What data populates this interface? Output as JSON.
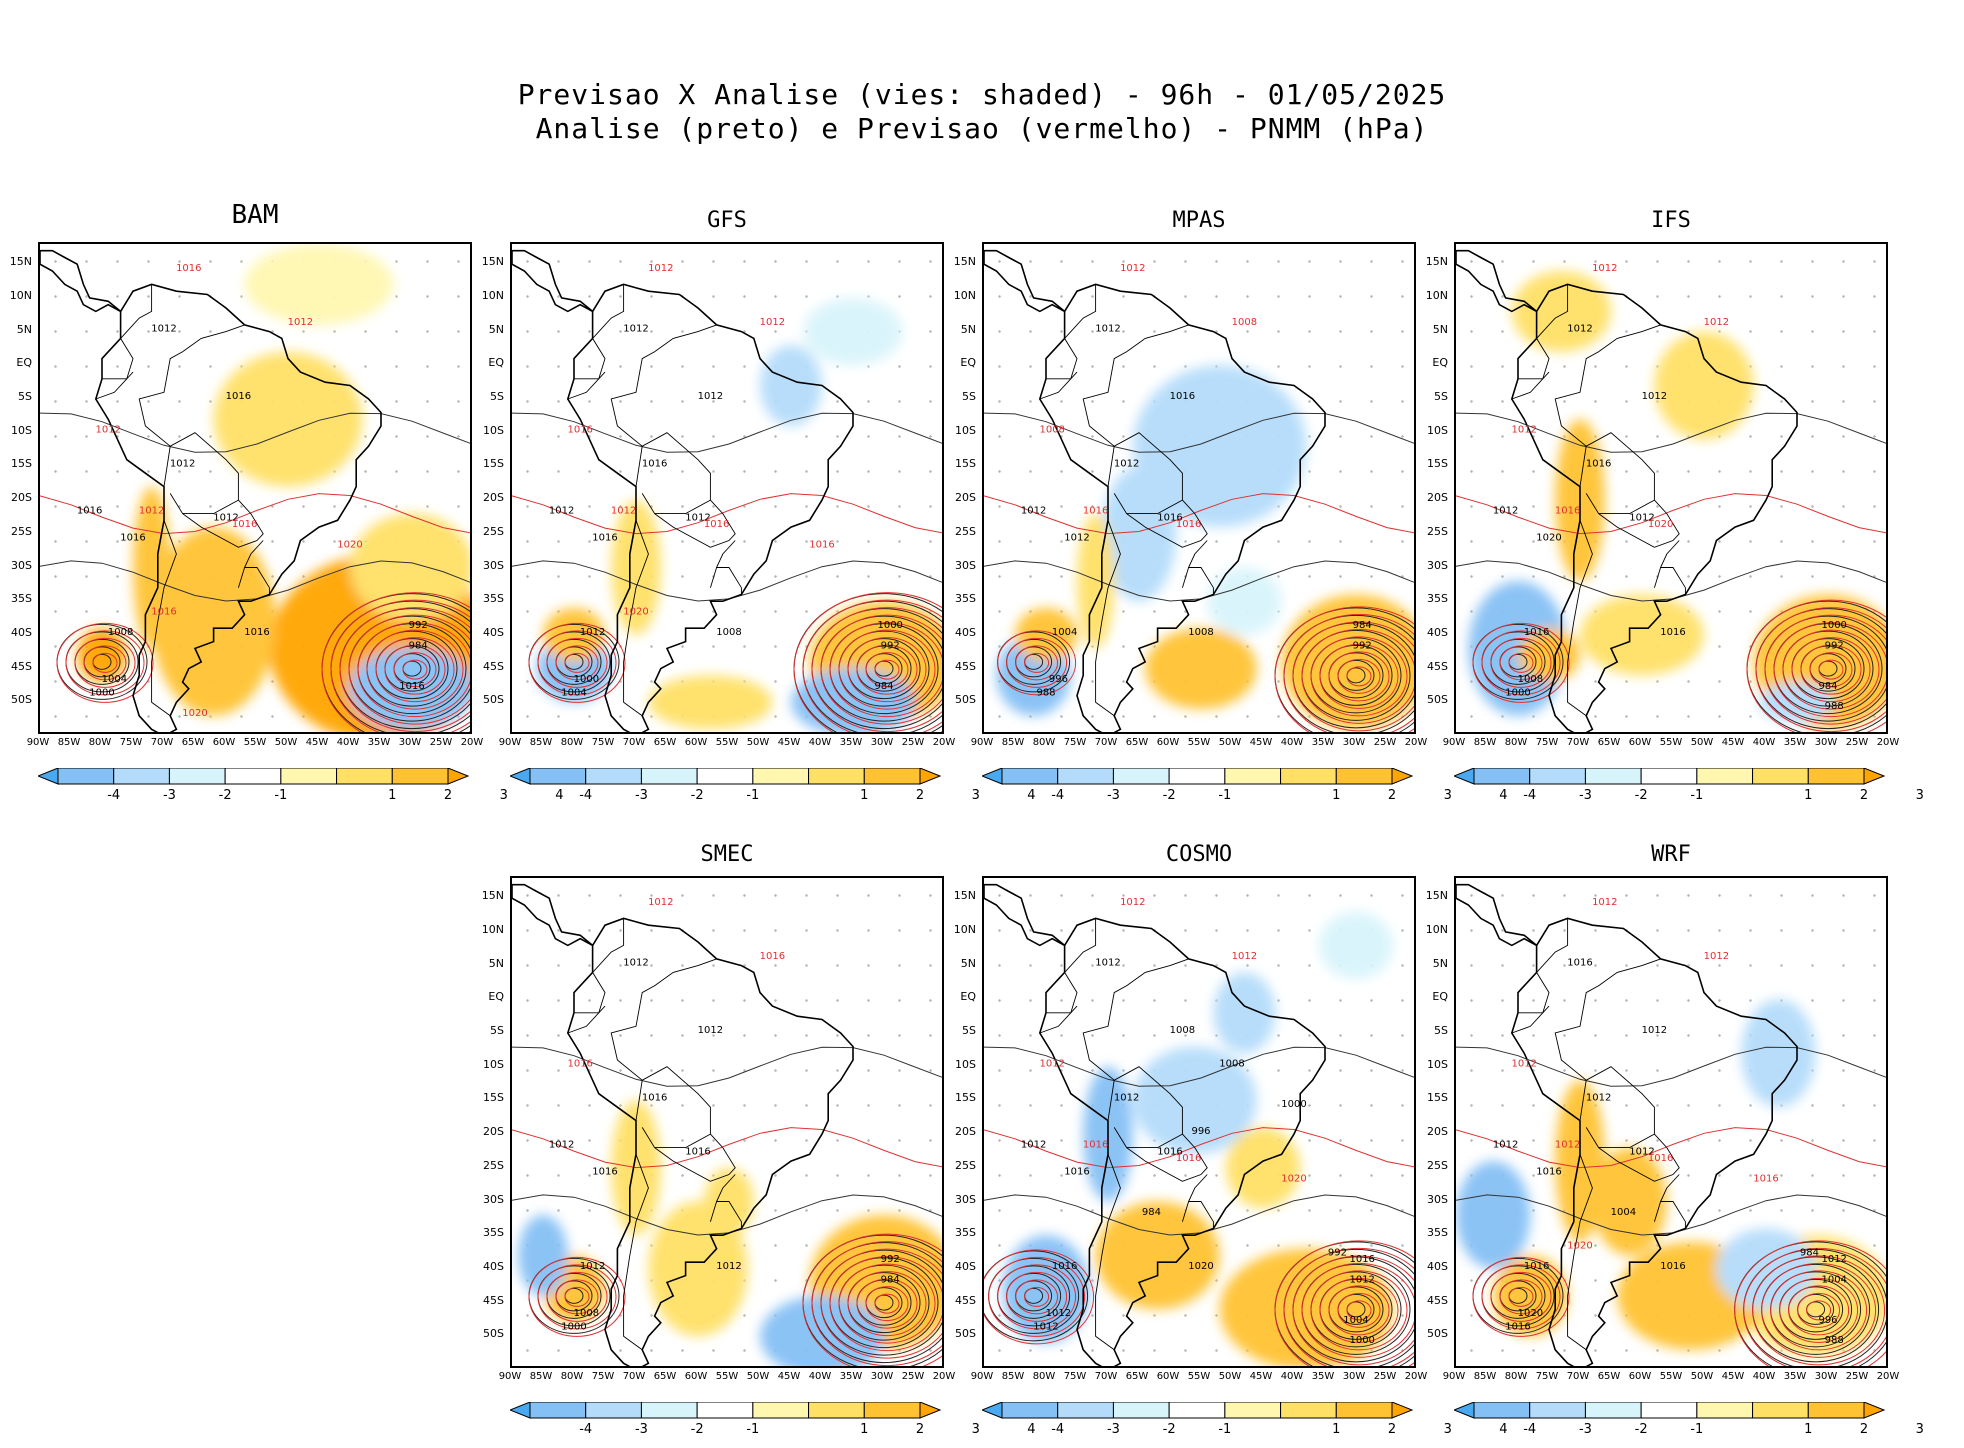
{
  "chart_data": {
    "type": "heatmap",
    "title": "Previsao X Analise (vies: shaded) - 96h - 01/05/2025",
    "subtitle": "Analise (preto) e Previsao (vermelho) - PNMM (hPa)",
    "lat_labels": [
      "15N",
      "10N",
      "5N",
      "EQ",
      "5S",
      "10S",
      "15S",
      "20S",
      "25S",
      "30S",
      "35S",
      "40S",
      "45S",
      "50S"
    ],
    "lon_labels": [
      "90W",
      "85W",
      "80W",
      "75W",
      "70W",
      "65W",
      "60W",
      "55W",
      "50W",
      "45W",
      "40W",
      "35W",
      "30W",
      "25W",
      "20W"
    ],
    "colorbar": {
      "ticks": [
        "-4",
        "-3",
        "-2",
        "-1",
        "1",
        "2",
        "3",
        "4"
      ],
      "colors": [
        "#4aa8f0",
        "#85c0f5",
        "#b4dcfa",
        "#d8f4fb",
        "#ffffff",
        "#fff7b0",
        "#ffe066",
        "#ffc233",
        "#ffa500"
      ]
    },
    "panels": [
      {
        "name": "BAM",
        "isobars_black": [
          "1016",
          "1012",
          "1016",
          "1012",
          "1012",
          "1016",
          "1016",
          "1008",
          "1004",
          "1000",
          "992",
          "984",
          "1016"
        ],
        "isobars_red": [
          "1016",
          "1012",
          "1012",
          "1012",
          "1016",
          "1020",
          "1016",
          "1020"
        ]
      },
      {
        "name": "GFS",
        "isobars_black": [
          "1012",
          "1012",
          "1012",
          "1016",
          "1012",
          "1016",
          "1008",
          "1012",
          "1000",
          "1004",
          "1000",
          "992",
          "984"
        ],
        "isobars_red": [
          "1012",
          "1012",
          "1016",
          "1012",
          "1016",
          "1016",
          "1020"
        ]
      },
      {
        "name": "MPAS",
        "isobars_black": [
          "1012",
          "1012",
          "1016",
          "1012",
          "1016",
          "1012",
          "1008",
          "1004",
          "996",
          "988",
          "984",
          "992"
        ],
        "isobars_red": [
          "1012",
          "1008",
          "1008",
          "1016",
          "1016"
        ]
      },
      {
        "name": "IFS",
        "isobars_black": [
          "1012",
          "1012",
          "1012",
          "1016",
          "1012",
          "1020",
          "1016",
          "1016",
          "1008",
          "1000",
          "1000",
          "992",
          "984",
          "988"
        ],
        "isobars_red": [
          "1012",
          "1012",
          "1012",
          "1016",
          "1020"
        ]
      },
      {
        "name": "SMEC",
        "isobars_black": [
          "1012",
          "1012",
          "1012",
          "1016",
          "1016",
          "1016",
          "1012",
          "1012",
          "1008",
          "1000",
          "992",
          "984"
        ],
        "isobars_red": [
          "1012",
          "1016",
          "1016"
        ]
      },
      {
        "name": "COSMO",
        "isobars_black": [
          "1012",
          "1012",
          "1008",
          "1012",
          "1016",
          "1016",
          "1020",
          "1016",
          "1012",
          "1012",
          "1016",
          "1012",
          "1004",
          "1000",
          "992",
          "984",
          "996",
          "1000",
          "1008"
        ],
        "isobars_red": [
          "1012",
          "1012",
          "1012",
          "1016",
          "1016",
          "1020"
        ]
      },
      {
        "name": "WRF",
        "isobars_black": [
          "1012",
          "1016",
          "1012",
          "1012",
          "1012",
          "1016",
          "1016",
          "1016",
          "1020",
          "1016",
          "1012",
          "1004",
          "996",
          "988",
          "984",
          "1004"
        ],
        "isobars_red": [
          "1012",
          "1012",
          "1012",
          "1012",
          "1016",
          "1016",
          "1020"
        ]
      }
    ]
  }
}
